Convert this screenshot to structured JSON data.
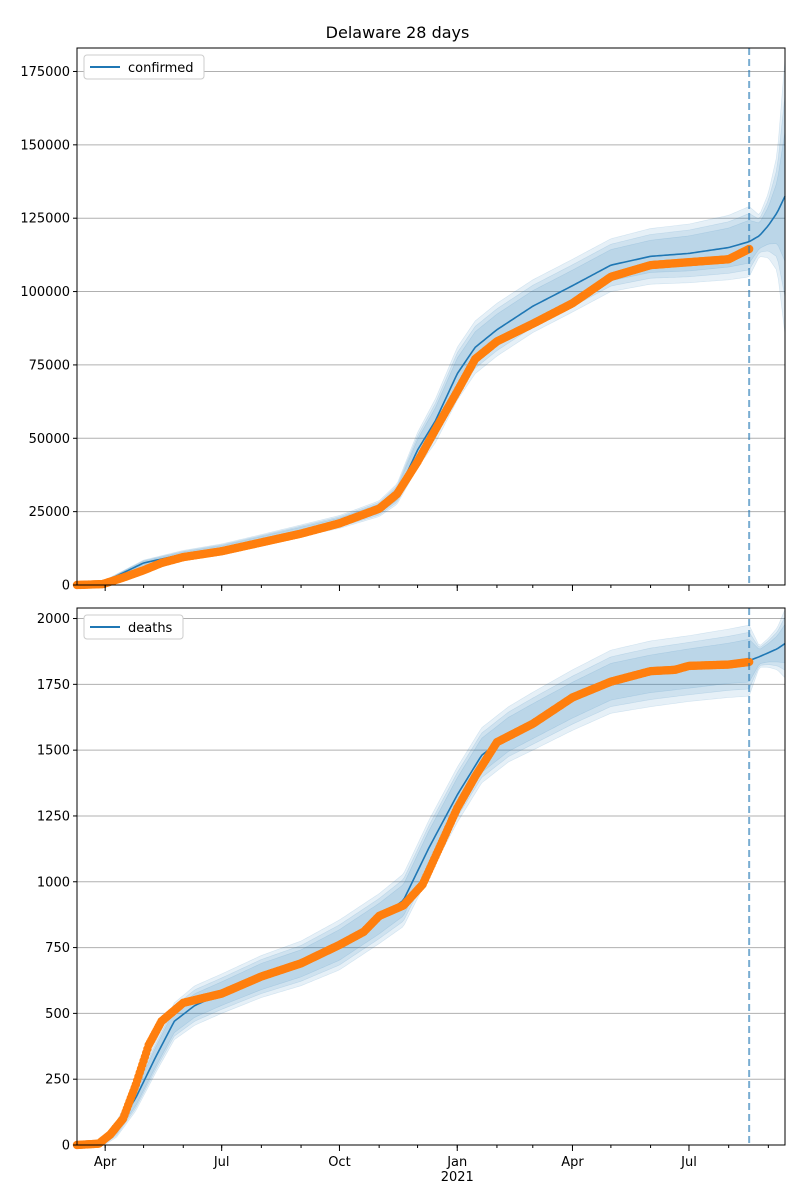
{
  "figure": {
    "title": "Delaware 28 days"
  },
  "chart_data": [
    {
      "type": "line",
      "legend": {
        "label": "confirmed",
        "placement": "upper-left"
      },
      "grid": "y",
      "ylim": [
        0,
        183000
      ],
      "yticks": [
        0,
        25000,
        50000,
        75000,
        100000,
        125000,
        150000,
        175000
      ],
      "yticklabels": [
        "0",
        "25000",
        "50000",
        "75000",
        "100000",
        "125000",
        "150000",
        "175000"
      ],
      "x_domain": [
        "2020-03-10",
        "2021-09-14"
      ],
      "forecast_start": "2021-08-17",
      "model_series": {
        "name": "confirmed",
        "x": [
          "2020-03-10",
          "2020-04-01",
          "2020-05-01",
          "2020-06-01",
          "2020-07-01",
          "2020-08-01",
          "2020-09-01",
          "2020-10-01",
          "2020-11-01",
          "2020-11-15",
          "2020-12-01",
          "2020-12-15",
          "2021-01-01",
          "2021-01-15",
          "2021-02-01",
          "2021-03-01",
          "2021-04-01",
          "2021-05-01",
          "2021-06-01",
          "2021-07-01",
          "2021-08-01",
          "2021-08-17",
          "2021-08-25",
          "2021-09-01",
          "2021-09-08",
          "2021-09-14"
        ],
        "y": [
          0,
          1200,
          7500,
          10500,
          12500,
          15500,
          18500,
          21500,
          26000,
          31000,
          46000,
          56000,
          72000,
          81000,
          87000,
          95000,
          102000,
          109000,
          112000,
          113000,
          115000,
          117000,
          119000,
          122500,
          127000,
          132500
        ],
        "band_half_widths": [
          [
            0,
            0
          ],
          [
            200,
            500
          ],
          [
            400,
            1000
          ],
          [
            500,
            1300
          ],
          [
            600,
            1500
          ],
          [
            700,
            1700
          ],
          [
            800,
            2000
          ],
          [
            900,
            2200
          ],
          [
            1100,
            2700
          ],
          [
            1500,
            3500
          ],
          [
            2500,
            6000
          ],
          [
            3000,
            7500
          ],
          [
            3500,
            9000
          ],
          [
            3500,
            9000
          ],
          [
            3500,
            9000
          ],
          [
            3500,
            9000
          ],
          [
            3500,
            9000
          ],
          [
            3500,
            9000
          ],
          [
            3500,
            9500
          ],
          [
            4000,
            10000
          ],
          [
            4500,
            11000
          ],
          [
            5000,
            12000
          ],
          [
            3000,
            7000
          ],
          [
            4000,
            11000
          ],
          [
            6000,
            20000
          ],
          [
            10000,
            47000
          ]
        ]
      },
      "observed_series": {
        "x": [
          "2020-03-10",
          "2020-03-30",
          "2020-04-15",
          "2020-05-01",
          "2020-05-15",
          "2020-06-01",
          "2020-07-01",
          "2020-08-01",
          "2020-09-01",
          "2020-10-01",
          "2020-11-01",
          "2020-11-15",
          "2020-12-01",
          "2020-12-15",
          "2021-01-01",
          "2021-01-15",
          "2021-02-01",
          "2021-03-01",
          "2021-04-01",
          "2021-05-01",
          "2021-06-01",
          "2021-07-01",
          "2021-08-01",
          "2021-08-17"
        ],
        "y": [
          0,
          300,
          2500,
          5000,
          7500,
          9500,
          11500,
          14500,
          17500,
          21000,
          26000,
          31000,
          42000,
          53000,
          66000,
          77000,
          83000,
          89000,
          96000,
          105000,
          109000,
          110000,
          111000,
          114500
        ]
      }
    },
    {
      "type": "line",
      "legend": {
        "label": "deaths",
        "placement": "upper-left"
      },
      "grid": "y",
      "ylim": [
        0,
        2040
      ],
      "yticks": [
        0,
        250,
        500,
        750,
        1000,
        1250,
        1500,
        1750,
        2000
      ],
      "yticklabels": [
        "0",
        "250",
        "500",
        "750",
        "1000",
        "1250",
        "1500",
        "1750",
        "2000"
      ],
      "x_domain": [
        "2020-03-10",
        "2021-09-14"
      ],
      "xticks": [
        "2020-04-01",
        "2020-07-01",
        "2020-10-01",
        "2021-01-01",
        "2021-04-01",
        "2021-07-01"
      ],
      "xticklabels": [
        "Apr",
        "Jul",
        "Oct",
        "Jan",
        "Apr",
        "Jul"
      ],
      "xyear_label": "2021",
      "forecast_start": "2021-08-17",
      "model_series": {
        "name": "deaths",
        "x": [
          "2020-03-10",
          "2020-03-30",
          "2020-04-10",
          "2020-04-25",
          "2020-05-10",
          "2020-05-25",
          "2020-06-10",
          "2020-07-01",
          "2020-08-01",
          "2020-09-01",
          "2020-10-01",
          "2020-11-01",
          "2020-11-20",
          "2020-12-10",
          "2021-01-01",
          "2021-01-20",
          "2021-02-10",
          "2021-03-01",
          "2021-04-01",
          "2021-05-01",
          "2021-06-01",
          "2021-07-01",
          "2021-08-01",
          "2021-08-17",
          "2021-08-25",
          "2021-09-01",
          "2021-09-08",
          "2021-09-14"
        ],
        "y": [
          0,
          10,
          60,
          180,
          330,
          470,
          530,
          575,
          640,
          690,
          760,
          860,
          930,
          1130,
          1330,
          1480,
          1560,
          1610,
          1690,
          1760,
          1790,
          1810,
          1830,
          1840,
          1855,
          1870,
          1885,
          1905
        ],
        "band_half_widths": [
          [
            0,
            0
          ],
          [
            5,
            15
          ],
          [
            10,
            30
          ],
          [
            20,
            50
          ],
          [
            25,
            60
          ],
          [
            30,
            70
          ],
          [
            30,
            75
          ],
          [
            30,
            75
          ],
          [
            35,
            80
          ],
          [
            35,
            85
          ],
          [
            40,
            95
          ],
          [
            40,
            95
          ],
          [
            40,
            100
          ],
          [
            45,
            105
          ],
          [
            45,
            105
          ],
          [
            45,
            105
          ],
          [
            45,
            105
          ],
          [
            45,
            110
          ],
          [
            45,
            115
          ],
          [
            45,
            120
          ],
          [
            45,
            125
          ],
          [
            50,
            125
          ],
          [
            50,
            130
          ],
          [
            55,
            135
          ],
          [
            20,
            40
          ],
          [
            25,
            55
          ],
          [
            35,
            80
          ],
          [
            45,
            130
          ]
        ]
      },
      "observed_series": {
        "x": [
          "2020-03-10",
          "2020-03-27",
          "2020-04-05",
          "2020-04-15",
          "2020-04-25",
          "2020-05-05",
          "2020-05-15",
          "2020-06-01",
          "2020-07-01",
          "2020-08-01",
          "2020-09-01",
          "2020-10-01",
          "2020-10-20",
          "2020-11-01",
          "2020-11-20",
          "2020-12-05",
          "2020-12-20",
          "2021-01-01",
          "2021-01-15",
          "2021-02-01",
          "2021-03-01",
          "2021-04-01",
          "2021-05-01",
          "2021-06-01",
          "2021-06-20",
          "2021-07-01",
          "2021-08-01",
          "2021-08-17"
        ],
        "y": [
          0,
          5,
          40,
          100,
          230,
          380,
          470,
          540,
          575,
          640,
          690,
          760,
          810,
          870,
          910,
          990,
          1150,
          1280,
          1400,
          1530,
          1600,
          1700,
          1760,
          1800,
          1805,
          1820,
          1825,
          1835
        ]
      }
    }
  ],
  "colors": {
    "model_line": "#1f77b4",
    "band_fill": "#1f77b4",
    "observed": "#ff7f0e",
    "forecast_line": "#1f77b4",
    "grid": "#b0b0b0"
  }
}
